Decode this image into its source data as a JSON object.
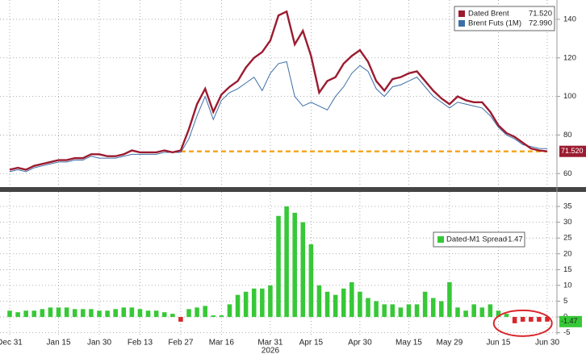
{
  "chart_data": [
    {
      "type": "line",
      "grid": true,
      "legend": "upper right",
      "ylim": [
        53,
        150
      ],
      "yticks": [
        60,
        80,
        100,
        120,
        140
      ],
      "series": [
        {
          "name": "Dated Brent",
          "color": "#9b1b30",
          "values": [
            62,
            63,
            62,
            64,
            65,
            66,
            67,
            67,
            68,
            68,
            70,
            70,
            69,
            69,
            70,
            72,
            71,
            71,
            71,
            72,
            71,
            72,
            83,
            96,
            104,
            92,
            101,
            105,
            108,
            115,
            120,
            123,
            129,
            142,
            144,
            127,
            134,
            121,
            102,
            108,
            110,
            117,
            121,
            124,
            118,
            108,
            103,
            109,
            110,
            112,
            113,
            108,
            103,
            99,
            96,
            100,
            98,
            97,
            97,
            92,
            85,
            81,
            79,
            76,
            73,
            72,
            71.52
          ],
          "value_labels": [
            null,
            null,
            null,
            null,
            null,
            null,
            null,
            null,
            null,
            null,
            null,
            null,
            null,
            null,
            null,
            null,
            null,
            null,
            null,
            null,
            null,
            null,
            null,
            null,
            null,
            null,
            null,
            null,
            null,
            null,
            null,
            null,
            null,
            null,
            null,
            null,
            null,
            null,
            null,
            null,
            null,
            null,
            null,
            null,
            null,
            null,
            null,
            null,
            null,
            null,
            null,
            null,
            null,
            null,
            null,
            null,
            null,
            null,
            null,
            null,
            null,
            null,
            null,
            null,
            null,
            null,
            "71.520"
          ]
        },
        {
          "name": "Brent Futs (1M)",
          "color": "#3d6fa8",
          "values": [
            61,
            62,
            61,
            63,
            64,
            65,
            66,
            66,
            67,
            67,
            69,
            68,
            68,
            68,
            69,
            70,
            70,
            70,
            70,
            71,
            71,
            71,
            78,
            90,
            100,
            88,
            98,
            102,
            104,
            107,
            110,
            103,
            112,
            117,
            118,
            100,
            95,
            97,
            95,
            93,
            100,
            105,
            112,
            116,
            113,
            104,
            100,
            105,
            106,
            108,
            110,
            105,
            100,
            97,
            94,
            97,
            96,
            95,
            94,
            90,
            84,
            80,
            78,
            75,
            74,
            73,
            72.99
          ],
          "value_labels": [
            null,
            null,
            null,
            null,
            null,
            null,
            null,
            null,
            null,
            null,
            null,
            null,
            null,
            null,
            null,
            null,
            null,
            null,
            null,
            null,
            null,
            null,
            null,
            null,
            null,
            null,
            null,
            null,
            null,
            null,
            null,
            null,
            null,
            null,
            null,
            null,
            null,
            null,
            null,
            null,
            null,
            null,
            null,
            null,
            null,
            null,
            null,
            null,
            null,
            null,
            null,
            null,
            null,
            null,
            null,
            null,
            null,
            null,
            null,
            null,
            null,
            null,
            null,
            null,
            null,
            null,
            "72.990"
          ]
        }
      ]
    },
    {
      "type": "bar",
      "grid": true,
      "xlabel": "2026",
      "ylim": [
        -5.6,
        39.6
      ],
      "yticks": [
        -5,
        0,
        5,
        10,
        15,
        20,
        25,
        30,
        35
      ],
      "categories": [
        "Dec 31",
        null,
        null,
        null,
        null,
        null,
        "Jan 15",
        null,
        null,
        null,
        null,
        "Jan 30",
        null,
        null,
        null,
        null,
        "Feb 13",
        null,
        null,
        null,
        null,
        "Feb 27",
        null,
        null,
        null,
        null,
        "Mar 16",
        null,
        null,
        null,
        null,
        null,
        "Mar 31",
        null,
        null,
        null,
        null,
        "Apr 15",
        null,
        null,
        null,
        null,
        null,
        "Apr 30",
        null,
        null,
        null,
        null,
        null,
        "May 15",
        null,
        null,
        null,
        null,
        "May 29",
        null,
        null,
        null,
        null,
        null,
        "Jun 15",
        null,
        null,
        null,
        null,
        null,
        "Jun 30"
      ],
      "series": [
        {
          "name": "Dated-M1 Spread",
          "color": "#37c837",
          "negative_color": "#d9262c",
          "values": [
            2,
            1.5,
            2,
            2,
            2.5,
            3,
            3,
            3,
            2.5,
            2.5,
            2.5,
            2,
            2,
            2.5,
            3,
            3,
            2.5,
            2,
            2,
            1.5,
            1,
            -1.5,
            2.5,
            3,
            3.5,
            0.5,
            0.5,
            4,
            7,
            8,
            9,
            9,
            10,
            32,
            35,
            33,
            30,
            23,
            10,
            8,
            7,
            9,
            11,
            8,
            6,
            5,
            4,
            4,
            3,
            4,
            4,
            8,
            6,
            5,
            11,
            3,
            2,
            4,
            3,
            4,
            2,
            1,
            -2,
            -1.5,
            -1.5,
            -1.5,
            -1.47
          ],
          "value_labels": [
            null,
            null,
            null,
            null,
            null,
            null,
            null,
            null,
            null,
            null,
            null,
            null,
            null,
            null,
            null,
            null,
            null,
            null,
            null,
            null,
            null,
            null,
            null,
            null,
            null,
            null,
            null,
            null,
            null,
            null,
            null,
            null,
            null,
            null,
            null,
            null,
            null,
            null,
            null,
            null,
            null,
            null,
            null,
            null,
            null,
            null,
            null,
            null,
            null,
            null,
            null,
            null,
            null,
            null,
            null,
            null,
            null,
            null,
            null,
            null,
            null,
            null,
            null,
            null,
            null,
            null,
            "-1.47"
          ]
        }
      ]
    }
  ]
}
